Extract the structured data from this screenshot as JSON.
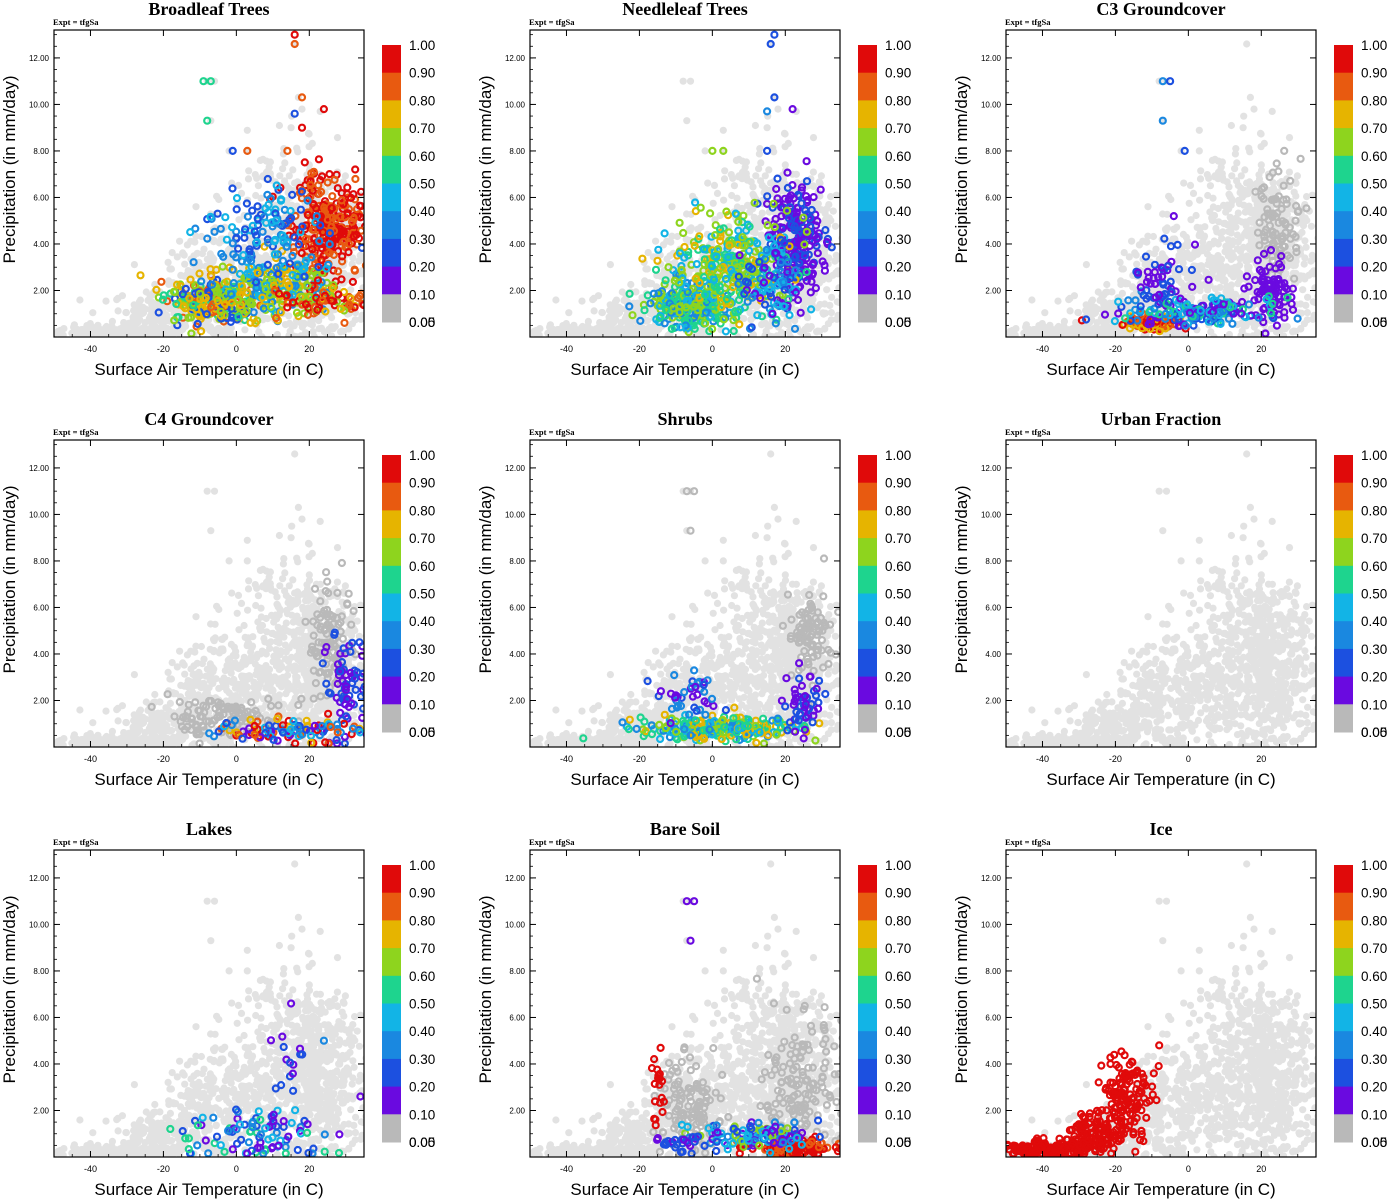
{
  "figure": {
    "background": "#ffffff"
  },
  "colorbar": {
    "labels": [
      "1.00",
      "0.90",
      "0.80",
      "0.70",
      "0.60",
      "0.50",
      "0.40",
      "0.30",
      "0.20",
      "0.10",
      "0.05",
      "0.00"
    ],
    "colors": [
      "#e00a0a",
      "#e85a10",
      "#e6b400",
      "#8ed41e",
      "#1ed48e",
      "#12b4e6",
      "#1a88e0",
      "#1c50e0",
      "#6a0ae0",
      "#b9b9b9"
    ],
    "background_points_color": "#e2e2e2"
  },
  "chart_data": [
    {
      "type": "scatter",
      "title": "Broadleaf Trees",
      "expt": "Expt = tfgSa",
      "xlabel": "Surface Air Temperature (in C)",
      "ylabel": "Precipitation (in mm/day)",
      "xlim": [
        -50,
        35
      ],
      "ylim": [
        0,
        13.2
      ],
      "xticks": [
        "-40",
        "-20",
        "0",
        "20"
      ],
      "yticks": [
        "2.00",
        "4.00",
        "6.00",
        "8.00",
        "10.00",
        "12.00"
      ],
      "clusters": [
        {
          "x": 25,
          "y": 4.5,
          "sx": 5,
          "sy": 1.2,
          "n": 280,
          "c": [
            0,
            1
          ]
        },
        {
          "x": -6,
          "y": 1.6,
          "sx": 6,
          "sy": 0.5,
          "n": 260,
          "c": [
            1,
            2,
            3,
            4,
            7
          ]
        },
        {
          "x": 10,
          "y": 2.2,
          "sx": 8,
          "sy": 0.6,
          "n": 200,
          "c": [
            2,
            3,
            5,
            6
          ]
        },
        {
          "x": 8,
          "y": 4.4,
          "sx": 8,
          "sy": 1.0,
          "n": 130,
          "c": [
            5,
            6,
            7
          ]
        },
        {
          "x": 22,
          "y": 1.5,
          "sx": 7,
          "sy": 0.4,
          "n": 80,
          "c": [
            0,
            1,
            2,
            3
          ]
        }
      ],
      "points": [
        {
          "x": -9,
          "y": 11.0,
          "c": 4
        },
        {
          "x": -7,
          "y": 11.0,
          "c": 4
        },
        {
          "x": -8,
          "y": 9.3,
          "c": 4
        },
        {
          "x": 16,
          "y": 13.0,
          "c": 0
        },
        {
          "x": 16,
          "y": 12.6,
          "c": 1
        },
        {
          "x": 18,
          "y": 10.3,
          "c": 1
        },
        {
          "x": 16,
          "y": 9.6,
          "c": 7
        },
        {
          "x": 18,
          "y": 9.0,
          "c": 0
        },
        {
          "x": 24,
          "y": 9.8,
          "c": 0
        },
        {
          "x": -1,
          "y": 8.0,
          "c": 7
        },
        {
          "x": 3,
          "y": 8.0,
          "c": 1
        },
        {
          "x": 14,
          "y": 8.0,
          "c": 1
        }
      ]
    },
    {
      "type": "scatter",
      "title": "Needleleaf Trees",
      "expt": "Expt = tfgSa",
      "xlabel": "Surface Air Temperature (in C)",
      "ylabel": "Precipitation (in mm/day)",
      "xlim": [
        -50,
        35
      ],
      "ylim": [
        0,
        13.2
      ],
      "xticks": [
        "-40",
        "-20",
        "0",
        "20"
      ],
      "yticks": [
        "2.00",
        "4.00",
        "6.00",
        "8.00",
        "10.00",
        "12.00"
      ],
      "clusters": [
        {
          "x": 23,
          "y": 4.3,
          "sx": 3.5,
          "sy": 1.2,
          "n": 230,
          "c": [
            8,
            8,
            7
          ]
        },
        {
          "x": -6,
          "y": 1.4,
          "sx": 6,
          "sy": 0.5,
          "n": 260,
          "c": [
            3,
            4,
            5,
            6
          ]
        },
        {
          "x": 5,
          "y": 3.0,
          "sx": 8,
          "sy": 1.0,
          "n": 300,
          "c": [
            2,
            3,
            3,
            4,
            5
          ]
        },
        {
          "x": 16,
          "y": 2.4,
          "sx": 4,
          "sy": 0.8,
          "n": 90,
          "c": [
            5,
            6,
            7,
            8
          ]
        }
      ],
      "points": [
        {
          "x": 17,
          "y": 13.0,
          "c": 7
        },
        {
          "x": 16,
          "y": 12.6,
          "c": 7
        },
        {
          "x": 17,
          "y": 10.3,
          "c": 7
        },
        {
          "x": 15,
          "y": 9.7,
          "c": 6
        },
        {
          "x": 22,
          "y": 9.8,
          "c": 8
        },
        {
          "x": 0,
          "y": 8.0,
          "c": 3
        },
        {
          "x": 3,
          "y": 8.0,
          "c": 3
        },
        {
          "x": 15,
          "y": 8.0,
          "c": 7
        }
      ]
    },
    {
      "type": "scatter",
      "title": "C3 Groundcover",
      "expt": "Expt = tfgSa",
      "xlabel": "Surface Air Temperature (in C)",
      "ylabel": "Precipitation (in mm/day)",
      "xlim": [
        -50,
        35
      ],
      "ylim": [
        0,
        13.2
      ],
      "xticks": [
        "-40",
        "-20",
        "0",
        "20"
      ],
      "yticks": [
        "2.00",
        "4.00",
        "6.00",
        "8.00",
        "10.00",
        "12.00"
      ],
      "clusters": [
        {
          "x": 25,
          "y": 4.8,
          "sx": 3,
          "sy": 1.2,
          "n": 90,
          "c": [
            9
          ]
        },
        {
          "x": 23,
          "y": 2.0,
          "sx": 3,
          "sy": 0.7,
          "n": 80,
          "c": [
            8
          ]
        },
        {
          "x": -10,
          "y": 0.6,
          "sx": 4,
          "sy": 0.15,
          "n": 90,
          "c": [
            0,
            1,
            2
          ]
        },
        {
          "x": 2,
          "y": 1.1,
          "sx": 10,
          "sy": 0.3,
          "n": 170,
          "c": [
            5,
            6,
            7,
            8,
            4
          ]
        },
        {
          "x": -7,
          "y": 2.4,
          "sx": 4,
          "sy": 0.9,
          "n": 50,
          "c": [
            7,
            8
          ]
        }
      ],
      "points": [
        {
          "x": -7,
          "y": 11.0,
          "c": 6
        },
        {
          "x": -5,
          "y": 11.0,
          "c": 7
        },
        {
          "x": -7,
          "y": 9.3,
          "c": 6
        },
        {
          "x": -1,
          "y": 8.0,
          "c": 7
        },
        {
          "x": -4,
          "y": 5.2,
          "c": 8
        }
      ]
    },
    {
      "type": "scatter",
      "title": "C4 Groundcover",
      "expt": "Expt = tfgSa",
      "xlabel": "Surface Air Temperature (in C)",
      "ylabel": "Precipitation (in mm/day)",
      "xlim": [
        -50,
        35
      ],
      "ylim": [
        0,
        13.2
      ],
      "xticks": [
        "-40",
        "-20",
        "0",
        "20"
      ],
      "yticks": [
        "2.00",
        "4.00",
        "6.00",
        "8.00",
        "10.00",
        "12.00"
      ],
      "clusters": [
        {
          "x": 26,
          "y": 4.5,
          "sx": 3,
          "sy": 1.2,
          "n": 100,
          "c": [
            9
          ]
        },
        {
          "x": -2,
          "y": 1.2,
          "sx": 8,
          "sy": 0.5,
          "n": 120,
          "c": [
            9
          ]
        },
        {
          "x": 30,
          "y": 2.8,
          "sx": 3,
          "sy": 1.1,
          "n": 70,
          "c": [
            8,
            7
          ]
        },
        {
          "x": 15,
          "y": 0.7,
          "sx": 10,
          "sy": 0.25,
          "n": 110,
          "c": [
            5,
            6,
            7,
            8,
            2,
            1,
            0
          ]
        }
      ],
      "points": []
    },
    {
      "type": "scatter",
      "title": "Shrubs",
      "expt": "Expt = tfgSa",
      "xlabel": "Surface Air Temperature (in C)",
      "ylabel": "Precipitation (in mm/day)",
      "xlim": [
        -50,
        35
      ],
      "ylim": [
        0,
        13.2
      ],
      "xticks": [
        "-40",
        "-20",
        "0",
        "20"
      ],
      "yticks": [
        "2.00",
        "4.00",
        "6.00",
        "8.00",
        "10.00",
        "12.00"
      ],
      "clusters": [
        {
          "x": 27,
          "y": 4.8,
          "sx": 3,
          "sy": 1.0,
          "n": 90,
          "c": [
            9
          ]
        },
        {
          "x": 2,
          "y": 0.8,
          "sx": 11,
          "sy": 0.25,
          "n": 260,
          "c": [
            3,
            4,
            2,
            5,
            6
          ]
        },
        {
          "x": -6,
          "y": 2.3,
          "sx": 4,
          "sy": 0.6,
          "n": 40,
          "c": [
            7,
            8,
            6
          ]
        },
        {
          "x": 25,
          "y": 1.8,
          "sx": 2.5,
          "sy": 0.7,
          "n": 50,
          "c": [
            7,
            8
          ]
        }
      ],
      "points": [
        {
          "x": -7,
          "y": 11.0,
          "c": 9
        },
        {
          "x": -5,
          "y": 11.0,
          "c": 9
        },
        {
          "x": -6,
          "y": 9.3,
          "c": 9
        }
      ]
    },
    {
      "type": "scatter",
      "title": "Urban Fraction",
      "expt": "Expt = tfgSa",
      "xlabel": "Surface Air Temperature (in C)",
      "ylabel": "Precipitation (in mm/day)",
      "xlim": [
        -50,
        35
      ],
      "ylim": [
        0,
        13.2
      ],
      "xticks": [
        "-40",
        "-20",
        "0",
        "20"
      ],
      "yticks": [
        "2.00",
        "4.00",
        "6.00",
        "8.00",
        "10.00",
        "12.00"
      ],
      "clusters": [],
      "points": []
    },
    {
      "type": "scatter",
      "title": "Lakes",
      "expt": "Expt = tfgSa",
      "xlabel": "Surface Air Temperature (in C)",
      "ylabel": "Precipitation (in mm/day)",
      "xlim": [
        -50,
        35
      ],
      "ylim": [
        0,
        13.2
      ],
      "xticks": [
        "-40",
        "-20",
        "0",
        "20"
      ],
      "yticks": [
        "2.00",
        "4.00",
        "6.00",
        "8.00",
        "10.00",
        "12.00"
      ],
      "clusters": [
        {
          "x": 5,
          "y": 1.0,
          "sx": 10,
          "sy": 0.6,
          "n": 90,
          "c": [
            8,
            7,
            6,
            5,
            4
          ]
        },
        {
          "x": 14,
          "y": 3.5,
          "sx": 3,
          "sy": 1.3,
          "n": 18,
          "c": [
            8,
            7
          ]
        }
      ],
      "points": [
        {
          "x": -14,
          "y": 0.8,
          "c": 4
        },
        {
          "x": -13,
          "y": 0.8,
          "c": 4
        },
        {
          "x": 15,
          "y": 6.6,
          "c": 8
        },
        {
          "x": 24,
          "y": 5.0,
          "c": 6
        },
        {
          "x": 34,
          "y": 2.6,
          "c": 8
        }
      ]
    },
    {
      "type": "scatter",
      "title": "Bare Soil",
      "expt": "Expt = tfgSa",
      "xlabel": "Surface Air Temperature (in C)",
      "ylabel": "Precipitation (in mm/day)",
      "xlim": [
        -50,
        35
      ],
      "ylim": [
        0,
        13.2
      ],
      "xticks": [
        "-40",
        "-20",
        "0",
        "20"
      ],
      "yticks": [
        "2.00",
        "4.00",
        "6.00",
        "8.00",
        "10.00",
        "12.00"
      ],
      "clusters": [
        {
          "x": -6,
          "y": 2.0,
          "sx": 5,
          "sy": 1.0,
          "n": 120,
          "c": [
            9
          ]
        },
        {
          "x": 24,
          "y": 3.2,
          "sx": 5,
          "sy": 1.4,
          "n": 150,
          "c": [
            9
          ]
        },
        {
          "x": 22,
          "y": 0.4,
          "sx": 6,
          "sy": 0.2,
          "n": 130,
          "c": [
            0,
            0,
            1
          ]
        },
        {
          "x": 12,
          "y": 0.9,
          "sx": 9,
          "sy": 0.3,
          "n": 120,
          "c": [
            5,
            6,
            7,
            8,
            3
          ]
        },
        {
          "x": -15,
          "y": 2.9,
          "sx": 1,
          "sy": 0.9,
          "n": 20,
          "c": [
            0
          ]
        },
        {
          "x": -10,
          "y": 0.5,
          "sx": 4,
          "sy": 0.2,
          "n": 25,
          "c": [
            8,
            7
          ]
        }
      ],
      "points": [
        {
          "x": -7,
          "y": 11.0,
          "c": 8
        },
        {
          "x": -5,
          "y": 11.0,
          "c": 8
        },
        {
          "x": -6,
          "y": 9.3,
          "c": 8
        }
      ]
    },
    {
      "type": "scatter",
      "title": "Ice",
      "expt": "Expt = tfgSa",
      "xlabel": "Surface Air Temperature (in C)",
      "ylabel": "Precipitation (in mm/day)",
      "xlim": [
        -50,
        35
      ],
      "ylim": [
        0,
        13.2
      ],
      "xticks": [
        "-40",
        "-20",
        "0",
        "20"
      ],
      "yticks": [
        "2.00",
        "4.00",
        "6.00",
        "8.00",
        "10.00",
        "12.00"
      ],
      "clusters": [
        {
          "x": -38,
          "y": 0.35,
          "sx": 7,
          "sy": 0.18,
          "n": 160,
          "c": [
            0
          ]
        },
        {
          "x": -24,
          "y": 1.1,
          "sx": 4,
          "sy": 0.5,
          "n": 120,
          "c": [
            0
          ]
        },
        {
          "x": -17,
          "y": 2.7,
          "sx": 3.5,
          "sy": 0.9,
          "n": 110,
          "c": [
            0
          ]
        }
      ],
      "points": [
        {
          "x": -8,
          "y": 4.8,
          "c": 0
        }
      ]
    }
  ]
}
